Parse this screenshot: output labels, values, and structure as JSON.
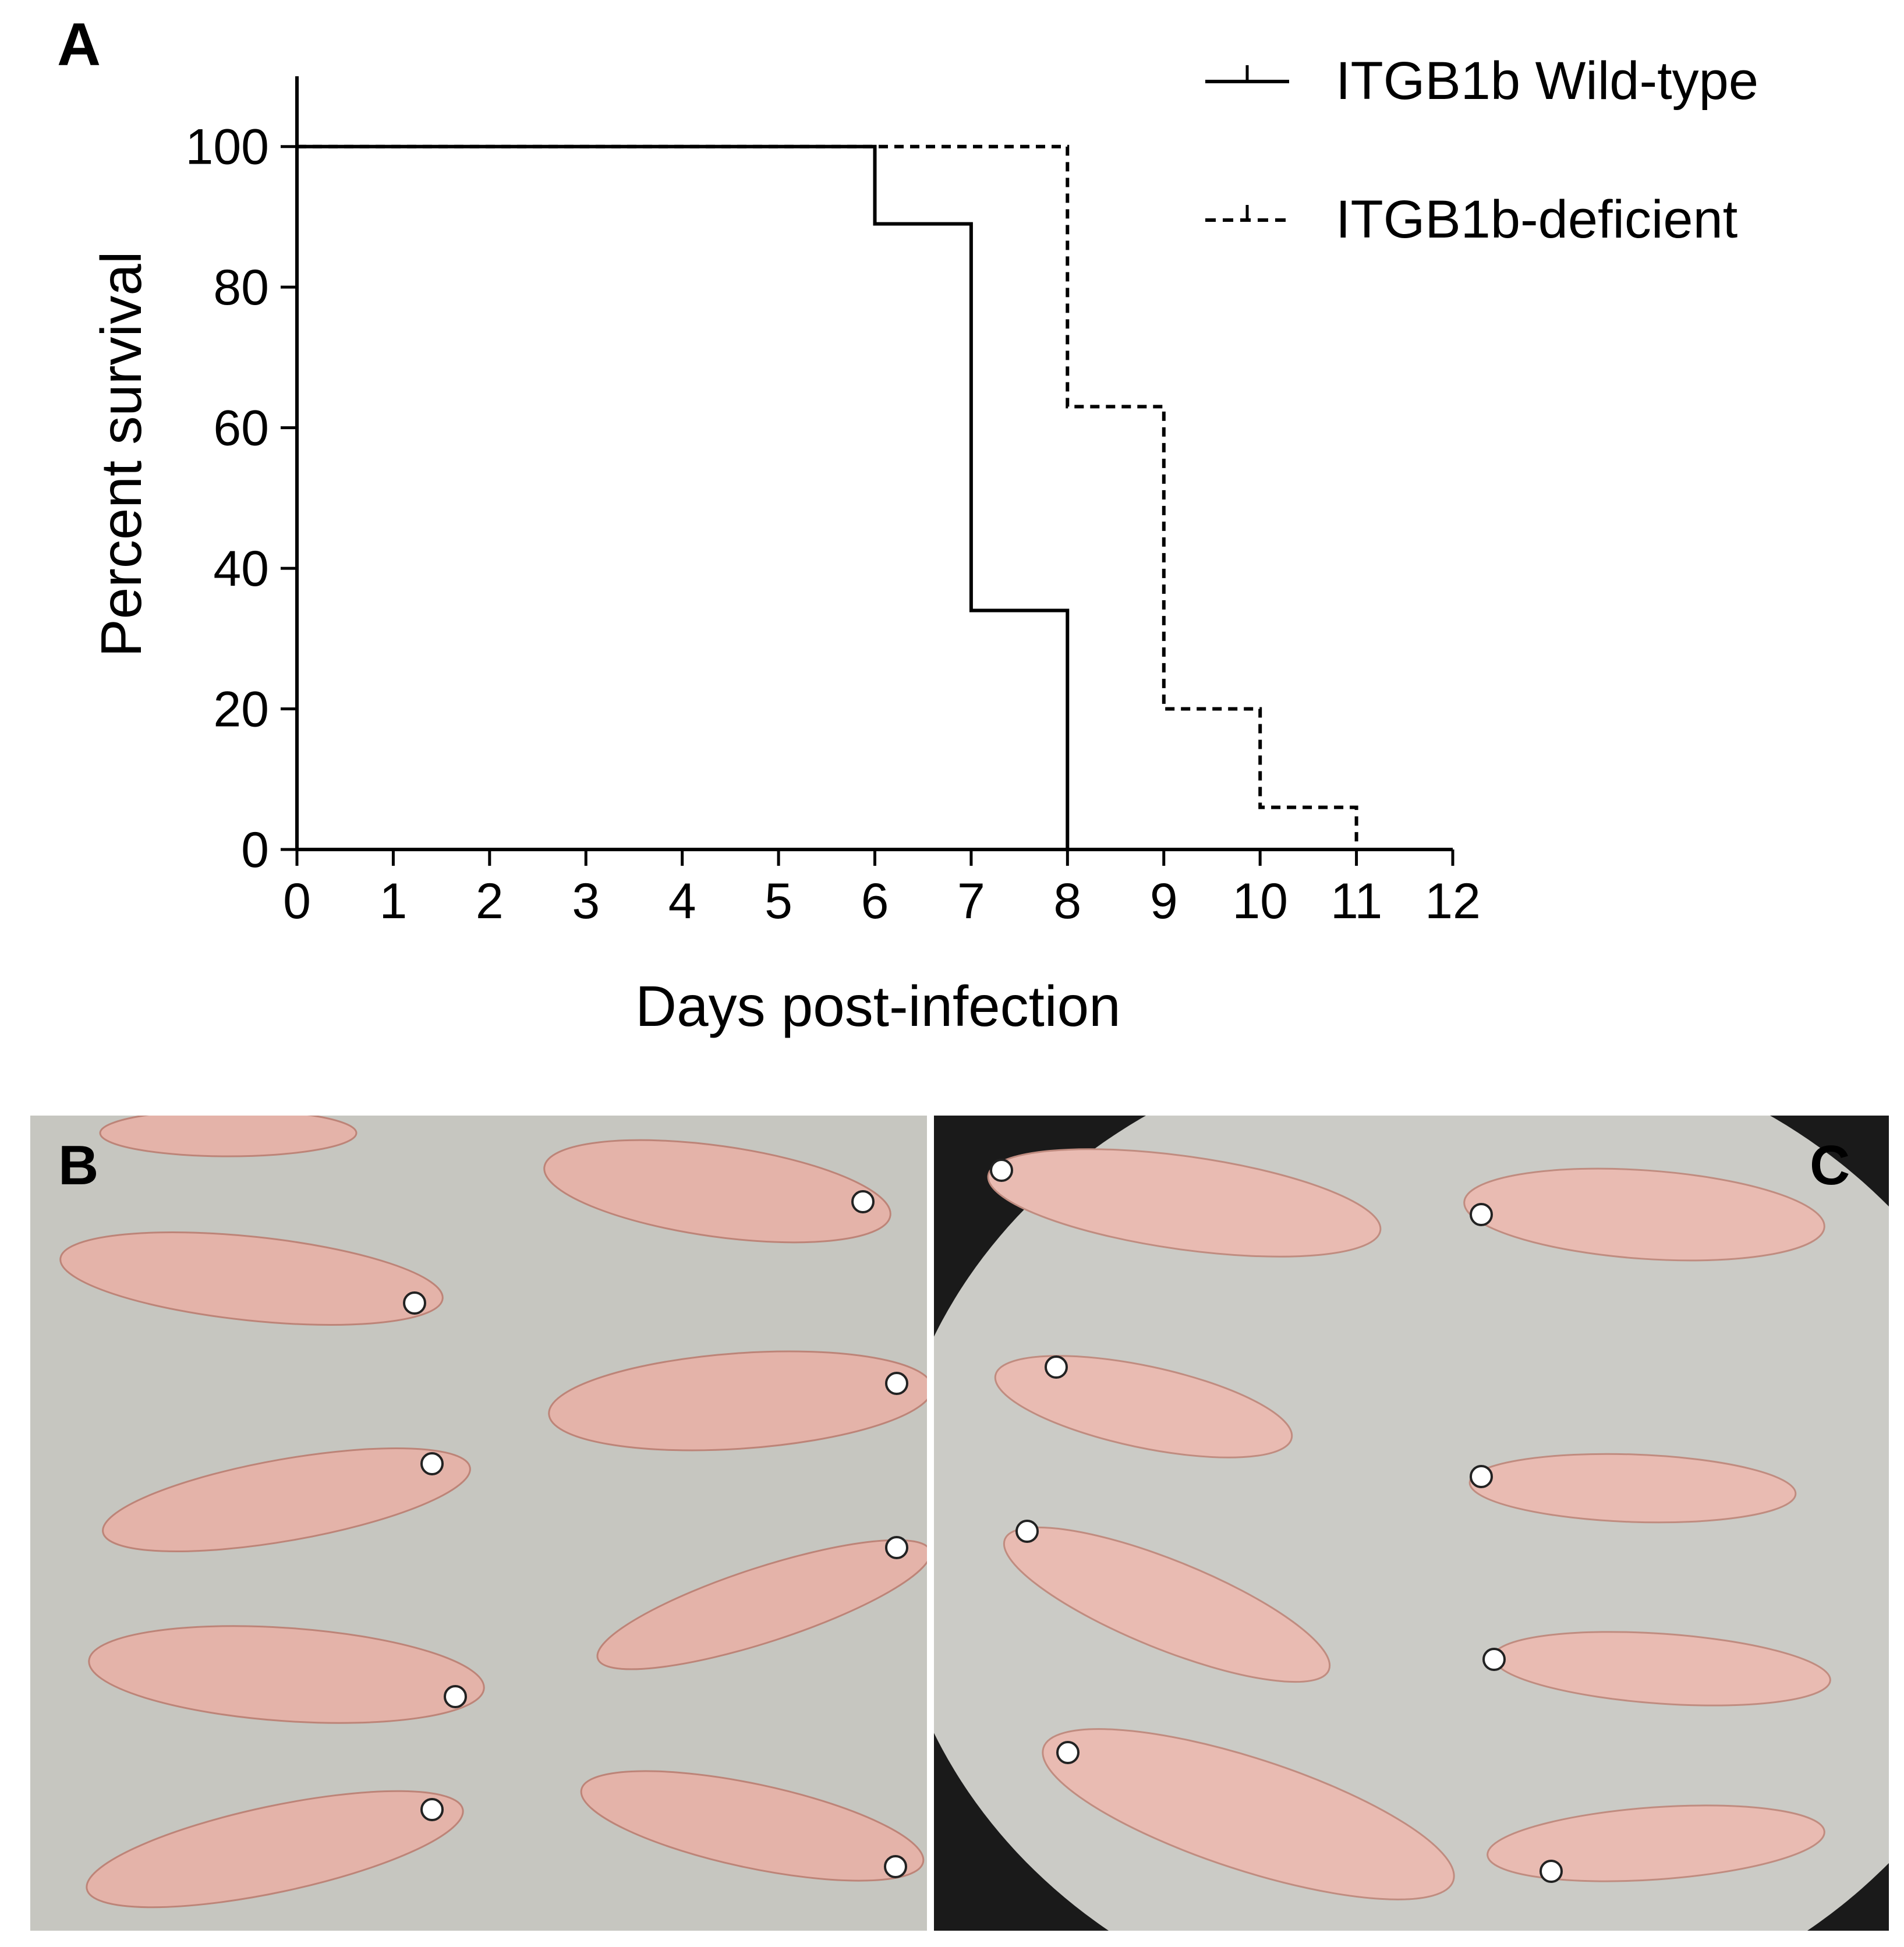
{
  "panel_labels": {
    "a": "A",
    "b": "B",
    "c": "C"
  },
  "chart_data": {
    "type": "line",
    "subtype": "kaplan-meier survival step plot",
    "xlabel": "Days post-infection",
    "ylabel": "Percent survival",
    "xlim": [
      0,
      12
    ],
    "ylim": [
      0,
      110
    ],
    "xticks": [
      0,
      1,
      2,
      3,
      4,
      5,
      6,
      7,
      8,
      9,
      10,
      11,
      12
    ],
    "yticks": [
      0,
      20,
      40,
      60,
      80,
      100
    ],
    "legend_position": "top-right",
    "series": [
      {
        "name": "ITGB1b Wild-type",
        "style": "solid",
        "color": "#000000",
        "points": [
          [
            0,
            100
          ],
          [
            6,
            100
          ],
          [
            6,
            89
          ],
          [
            7,
            89
          ],
          [
            7,
            34
          ],
          [
            8,
            34
          ],
          [
            8,
            0
          ]
        ]
      },
      {
        "name": "ITGB1b-deficient",
        "style": "dashed",
        "color": "#000000",
        "points": [
          [
            0,
            100
          ],
          [
            8,
            100
          ],
          [
            8,
            63
          ],
          [
            9,
            63
          ],
          [
            9,
            20
          ],
          [
            10,
            20
          ],
          [
            10,
            6
          ],
          [
            11,
            6
          ],
          [
            11,
            0
          ]
        ]
      }
    ]
  },
  "photos": {
    "background_color": "#c9c9c4",
    "fish_color": "#e6b6ad"
  }
}
